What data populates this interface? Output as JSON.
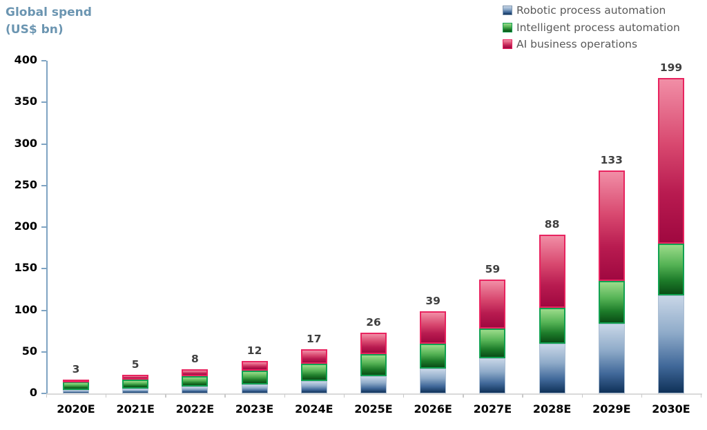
{
  "title": "Global spend (US$ bn)",
  "legend": {
    "position": "top-right",
    "items": [
      {
        "key": "rpa",
        "label": "Robotic process automation",
        "color": "#41699a"
      },
      {
        "key": "ipa",
        "label": "Intelligent process automation",
        "color": "#1d7c2a"
      },
      {
        "key": "ai",
        "label": "AI business operations",
        "color": "#c40e4c"
      }
    ]
  },
  "chart_data": {
    "type": "bar",
    "stacked": true,
    "title": "Global spend (US$ bn)",
    "ylabel": "Global spend (US$ bn)",
    "xlabel": "",
    "ylim": [
      0,
      400
    ],
    "ytick_step": 50,
    "grid": false,
    "legend_position": "top-right",
    "categories": [
      "2020E",
      "2021E",
      "2022E",
      "2023E",
      "2024E",
      "2025E",
      "2026E",
      "2027E",
      "2028E",
      "2029E",
      "2030E"
    ],
    "series": [
      {
        "key": "rpa",
        "name": "Robotic process automation",
        "values": [
          4,
          6,
          8,
          11,
          15,
          21,
          30,
          42,
          60,
          84,
          118
        ]
      },
      {
        "key": "ipa",
        "name": "Intelligent process automation",
        "values": [
          10,
          11,
          13,
          16,
          21,
          26,
          30,
          36,
          43,
          51,
          62
        ]
      },
      {
        "key": "ai",
        "name": "AI business operations",
        "values": [
          3,
          5,
          8,
          12,
          17,
          26,
          39,
          59,
          88,
          133,
          199
        ]
      }
    ],
    "bar_labels": [
      "3",
      "5",
      "8",
      "12",
      "17",
      "26",
      "39",
      "59",
      "88",
      "133",
      "199"
    ],
    "bar_labels_meaning": "value of AI business operations segment shown above each bar"
  },
  "colors": {
    "title_text": "#6b95b1",
    "legend_text": "#595959",
    "axis_line": "#7ea3c2",
    "x_axis_line": "#d9d9d9",
    "tick_label_text": "#000000",
    "bar_value_text": "#404040",
    "rpa_border": "#aabdd2",
    "ipa_border": "#12a151",
    "ai_border": "#e8235f"
  }
}
